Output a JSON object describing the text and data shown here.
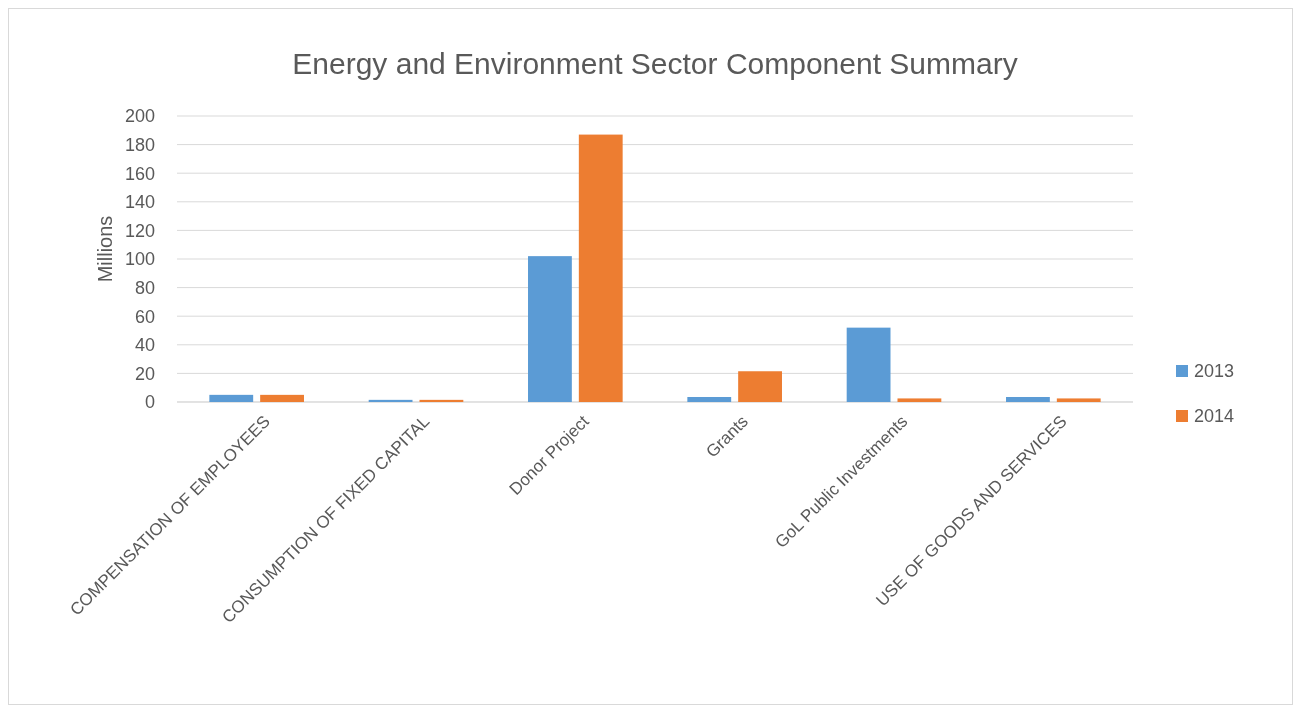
{
  "chart_data": {
    "type": "bar",
    "title": "Energy and Environment Sector Component Summary",
    "ylabel": "Millions",
    "categories": [
      "COMPENSATION OF EMPLOYEES",
      "CONSUMPTION OF FIXED CAPITAL",
      "Donor Project",
      "Grants",
      "GoL Public Investments",
      "USE OF GOODS AND SERVICES"
    ],
    "series": [
      {
        "name": "2013",
        "color": "#5b9bd5",
        "values": [
          5,
          1.5,
          102,
          3.5,
          52,
          3.5
        ]
      },
      {
        "name": "2014",
        "color": "#ed7d31",
        "values": [
          5,
          1.5,
          187,
          21.5,
          2.5,
          2.5
        ]
      }
    ],
    "ylim": [
      0,
      200
    ],
    "yticks": [
      0,
      20,
      40,
      60,
      80,
      100,
      120,
      140,
      160,
      180,
      200
    ],
    "grid": "y",
    "legend": "right"
  }
}
